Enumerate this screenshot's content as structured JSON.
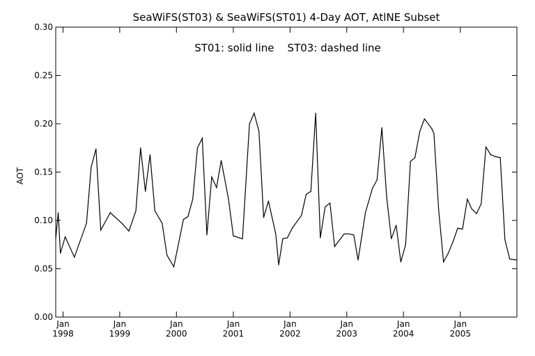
{
  "chart_data": {
    "type": "line",
    "title": "SeaWiFS(ST03) & SeaWiFS(ST01) 4-Day AOT, AtlNE Subset",
    "annotation": "ST01: solid line    ST03: dashed line",
    "xlabel": "",
    "ylabel": "AOT",
    "xlim": [
      "1997-11-15",
      "2005-12-31"
    ],
    "ylim": [
      0,
      0.3
    ],
    "yticks": [
      "0.00",
      "0.05",
      "0.10",
      "0.15",
      "0.20",
      "0.25",
      "0.30"
    ],
    "xticks": [
      {
        "month": "Jan",
        "year": "1998",
        "date": "1998-01-01"
      },
      {
        "month": "Jan",
        "year": "1999",
        "date": "1999-01-01"
      },
      {
        "month": "Jan",
        "year": "2000",
        "date": "2000-01-01"
      },
      {
        "month": "Jan",
        "year": "2001",
        "date": "2001-01-01"
      },
      {
        "month": "Jan",
        "year": "2002",
        "date": "2002-01-01"
      },
      {
        "month": "Jan",
        "year": "2003",
        "date": "2003-01-01"
      },
      {
        "month": "Jan",
        "year": "2004",
        "date": "2004-01-01"
      },
      {
        "month": "Jan",
        "year": "2005",
        "date": "2005-01-01"
      }
    ],
    "grid": false,
    "line_color": "#000000",
    "series": [
      {
        "style": "solid",
        "points": [
          [
            "1997-11-15",
            0.081
          ],
          [
            "1997-12-01",
            0.108
          ],
          [
            "1997-12-15",
            0.066
          ],
          [
            "1998-01-15",
            0.083
          ],
          [
            "1998-03-15",
            0.062
          ],
          [
            "1998-06-01",
            0.097
          ],
          [
            "1998-07-01",
            0.155
          ],
          [
            "1998-08-01",
            0.174
          ],
          [
            "1998-09-01",
            0.09
          ],
          [
            "1998-11-01",
            0.108
          ],
          [
            "1999-01-15",
            0.097
          ],
          [
            "1999-03-01",
            0.089
          ],
          [
            "1999-04-15",
            0.11
          ],
          [
            "1999-05-15",
            0.175
          ],
          [
            "1999-06-15",
            0.13
          ],
          [
            "1999-07-15",
            0.168
          ],
          [
            "1999-08-15",
            0.11
          ],
          [
            "1999-10-01",
            0.097
          ],
          [
            "1999-11-01",
            0.064
          ],
          [
            "1999-12-15",
            0.052
          ],
          [
            "2000-02-15",
            0.101
          ],
          [
            "2000-03-15",
            0.104
          ],
          [
            "2000-04-15",
            0.122
          ],
          [
            "2000-05-15",
            0.175
          ],
          [
            "2000-06-15",
            0.185
          ],
          [
            "2000-07-15",
            0.085
          ],
          [
            "2000-08-15",
            0.145
          ],
          [
            "2000-09-15",
            0.134
          ],
          [
            "2000-10-15",
            0.162
          ],
          [
            "2000-12-01",
            0.122
          ],
          [
            "2001-01-01",
            0.084
          ],
          [
            "2001-03-01",
            0.081
          ],
          [
            "2001-04-15",
            0.2
          ],
          [
            "2001-05-15",
            0.211
          ],
          [
            "2001-06-15",
            0.192
          ],
          [
            "2001-07-15",
            0.103
          ],
          [
            "2001-08-15",
            0.12
          ],
          [
            "2001-10-01",
            0.086
          ],
          [
            "2001-10-20",
            0.054
          ],
          [
            "2001-11-15",
            0.081
          ],
          [
            "2001-12-15",
            0.082
          ],
          [
            "2002-01-15",
            0.092
          ],
          [
            "2002-03-15",
            0.105
          ],
          [
            "2002-04-15",
            0.127
          ],
          [
            "2002-05-15",
            0.13
          ],
          [
            "2002-06-15",
            0.211
          ],
          [
            "2002-07-15",
            0.082
          ],
          [
            "2002-08-15",
            0.114
          ],
          [
            "2002-09-15",
            0.118
          ],
          [
            "2002-10-15",
            0.073
          ],
          [
            "2002-12-15",
            0.086
          ],
          [
            "2003-01-15",
            0.086
          ],
          [
            "2003-02-15",
            0.085
          ],
          [
            "2003-03-15",
            0.059
          ],
          [
            "2003-05-01",
            0.108
          ],
          [
            "2003-06-15",
            0.133
          ],
          [
            "2003-07-15",
            0.142
          ],
          [
            "2003-08-15",
            0.196
          ],
          [
            "2003-09-15",
            0.124
          ],
          [
            "2003-10-15",
            0.081
          ],
          [
            "2003-11-15",
            0.095
          ],
          [
            "2003-12-15",
            0.057
          ],
          [
            "2004-01-15",
            0.075
          ],
          [
            "2004-02-15",
            0.161
          ],
          [
            "2004-03-15",
            0.165
          ],
          [
            "2004-04-15",
            0.192
          ],
          [
            "2004-05-15",
            0.205
          ],
          [
            "2004-07-01",
            0.195
          ],
          [
            "2004-07-15",
            0.19
          ],
          [
            "2004-08-15",
            0.11
          ],
          [
            "2004-09-15",
            0.057
          ],
          [
            "2004-10-15",
            0.066
          ],
          [
            "2004-11-15",
            0.078
          ],
          [
            "2004-12-15",
            0.092
          ],
          [
            "2005-01-15",
            0.091
          ],
          [
            "2005-02-15",
            0.122
          ],
          [
            "2005-03-15",
            0.112
          ],
          [
            "2005-04-15",
            0.107
          ],
          [
            "2005-05-15",
            0.117
          ],
          [
            "2005-06-15",
            0.176
          ],
          [
            "2005-07-15",
            0.168
          ],
          [
            "2005-08-15",
            0.166
          ],
          [
            "2005-09-15",
            0.165
          ],
          [
            "2005-10-15",
            0.08
          ],
          [
            "2005-11-15",
            0.06
          ],
          [
            "2005-12-31",
            0.059
          ]
        ]
      }
    ]
  }
}
